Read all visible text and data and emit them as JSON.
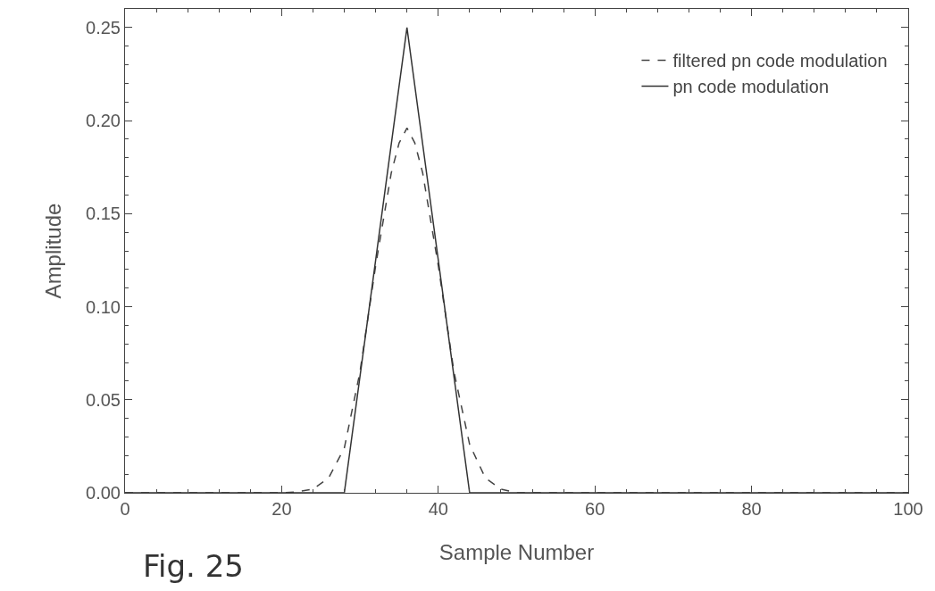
{
  "chart_data": {
    "type": "line",
    "xlabel": "Sample Number",
    "ylabel": "Amplitude",
    "annotations": [
      "Fig. 25"
    ],
    "xlim": [
      0,
      100
    ],
    "xticks": [
      0,
      20,
      40,
      60,
      80,
      100
    ],
    "ylim": [
      0,
      0.26
    ],
    "yticks": [
      {
        "value": 0,
        "label": "0.00"
      },
      0.05,
      {
        "value": 0.1,
        "label": "0.10"
      },
      0.15,
      {
        "value": 0.2,
        "label": "0.20"
      },
      0.25
    ],
    "grid": false,
    "legend": "top right",
    "marker": "none",
    "series": [
      {
        "name": "filtered pn code modulation",
        "color": "#444444",
        "line_style": "dashed",
        "x": [
          0,
          20,
          22,
          24,
          26,
          28,
          30,
          32,
          34,
          35,
          36,
          37,
          38,
          40,
          42,
          44,
          46,
          48,
          50,
          100
        ],
        "values": [
          0,
          0,
          0.0005,
          0.002,
          0.008,
          0.024,
          0.065,
          0.122,
          0.172,
          0.188,
          0.196,
          0.188,
          0.172,
          0.122,
          0.065,
          0.026,
          0.008,
          0.002,
          0,
          0
        ]
      },
      {
        "name": "pn code modulation",
        "color": "#333333",
        "line_style": "solid",
        "x": [
          0,
          28,
          36,
          44,
          100
        ],
        "values": [
          0,
          0,
          0.25,
          0,
          0
        ]
      }
    ]
  }
}
